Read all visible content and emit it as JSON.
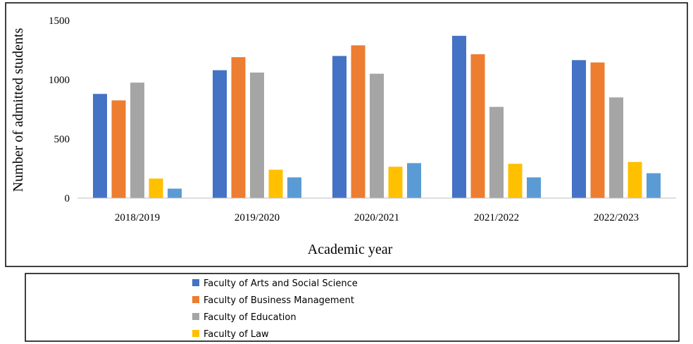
{
  "chart_data": {
    "type": "bar",
    "title": "",
    "xlabel": "Academic year",
    "ylabel": "Number of admitted students",
    "ylim": [
      0,
      1500
    ],
    "yticks": [
      0,
      500,
      1000,
      1500
    ],
    "grid": false,
    "legend_position": "bottom",
    "categories": [
      "2018/2019",
      "2019/2020",
      "2020/2021",
      "2021/2022",
      "2022/2023"
    ],
    "series": [
      {
        "name": "Faculty of Arts and Social Science",
        "color": "#4472C4",
        "values": [
          880,
          1080,
          1200,
          1370,
          1165
        ]
      },
      {
        "name": "Faculty of Business Management",
        "color": "#ED7D31",
        "values": [
          825,
          1190,
          1290,
          1215,
          1145
        ]
      },
      {
        "name": "Faculty of Education",
        "color": "#A5A5A5",
        "values": [
          975,
          1060,
          1050,
          770,
          850
        ]
      },
      {
        "name": "Faculty of Law",
        "color": "#FFC000",
        "values": [
          165,
          240,
          265,
          290,
          305
        ]
      },
      {
        "name": "",
        "color": "#5B9BD5",
        "values": [
          80,
          175,
          295,
          175,
          210
        ]
      }
    ]
  }
}
